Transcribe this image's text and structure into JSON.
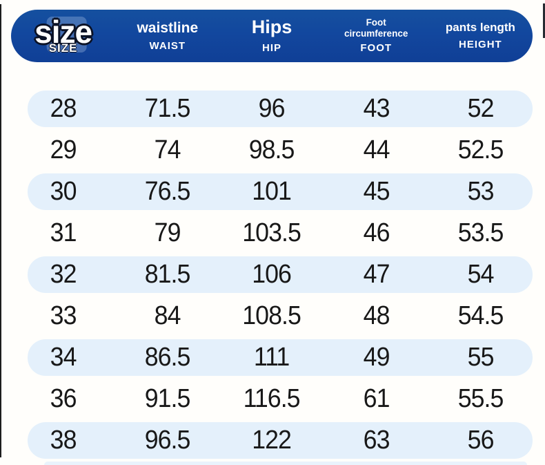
{
  "colors": {
    "header_bg": "#12479e",
    "header_text": "#ffffff",
    "row_alt_bg": "#e4f0fb",
    "row_text": "#181818",
    "page_bg": "#fffefb"
  },
  "table": {
    "columns": [
      {
        "id": "size",
        "label": "size",
        "sublabel": "SIZE"
      },
      {
        "id": "waist",
        "label": "waistline",
        "sublabel": "WAIST"
      },
      {
        "id": "hip",
        "label": "Hips",
        "sublabel": "HIP"
      },
      {
        "id": "foot",
        "label": "Foot circumference",
        "sublabel": "FOOT"
      },
      {
        "id": "height",
        "label": "pants length",
        "sublabel": "HEIGHT"
      }
    ],
    "rows": [
      [
        "28",
        "71.5",
        "96",
        "43",
        "52"
      ],
      [
        "29",
        "74",
        "98.5",
        "44",
        "52.5"
      ],
      [
        "30",
        "76.5",
        "101",
        "45",
        "53"
      ],
      [
        "31",
        "79",
        "103.5",
        "46",
        "53.5"
      ],
      [
        "32",
        "81.5",
        "106",
        "47",
        "54"
      ],
      [
        "33",
        "84",
        "108.5",
        "48",
        "54.5"
      ],
      [
        "34",
        "86.5",
        "111",
        "49",
        "55"
      ],
      [
        "36",
        "91.5",
        "116.5",
        "61",
        "55.5"
      ],
      [
        "38",
        "96.5",
        "122",
        "63",
        "56"
      ]
    ]
  },
  "chart_data": {
    "type": "table",
    "title": "Pants size chart",
    "columns": [
      "size / SIZE",
      "waistline / WAIST",
      "Hips / HIP",
      "Foot circumference / FOOT",
      "pants length / HEIGHT"
    ],
    "rows": [
      [
        28,
        71.5,
        96,
        43,
        52
      ],
      [
        29,
        74,
        98.5,
        44,
        52.5
      ],
      [
        30,
        76.5,
        101,
        45,
        53
      ],
      [
        31,
        79,
        103.5,
        46,
        53.5
      ],
      [
        32,
        81.5,
        106,
        47,
        54
      ],
      [
        33,
        84,
        108.5,
        48,
        54.5
      ],
      [
        34,
        86.5,
        111,
        49,
        55
      ],
      [
        36,
        91.5,
        116.5,
        61,
        55.5
      ],
      [
        38,
        96.5,
        122,
        63,
        56
      ]
    ],
    "layout": {
      "alt_row_highlight": true,
      "header_style": "navy pill bar",
      "grid": false
    }
  }
}
